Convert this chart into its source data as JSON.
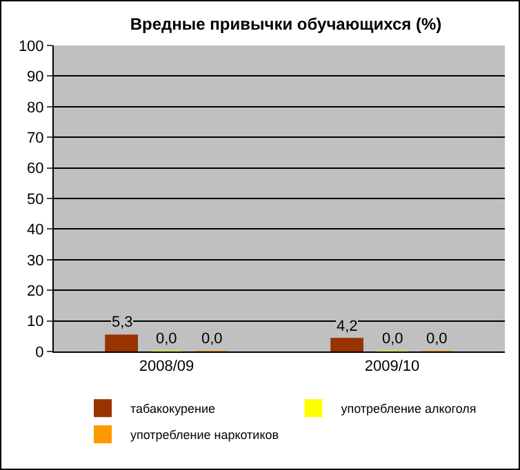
{
  "chart_data": {
    "type": "bar",
    "title": "Вредные привычки обучающихся (%)",
    "categories": [
      "2008/09",
      "2009/10"
    ],
    "series": [
      {
        "name": "табакокурение",
        "color": "#993300",
        "values": [
          5.3,
          4.2
        ],
        "value_labels": [
          "5,3",
          "4,2"
        ]
      },
      {
        "name": "употребление алкоголя",
        "color": "#ffff00",
        "values": [
          0,
          0
        ],
        "value_labels": [
          "0,0",
          "0,0"
        ]
      },
      {
        "name": "употребление наркотиков",
        "color": "#ff9900",
        "values": [
          0,
          0
        ],
        "value_labels": [
          "0,0",
          "0,0"
        ]
      }
    ],
    "ylim": [
      0,
      100
    ],
    "yticks": [
      0,
      10,
      20,
      30,
      40,
      50,
      60,
      70,
      80,
      90,
      100
    ],
    "grid": "y",
    "legend": "bottom"
  }
}
